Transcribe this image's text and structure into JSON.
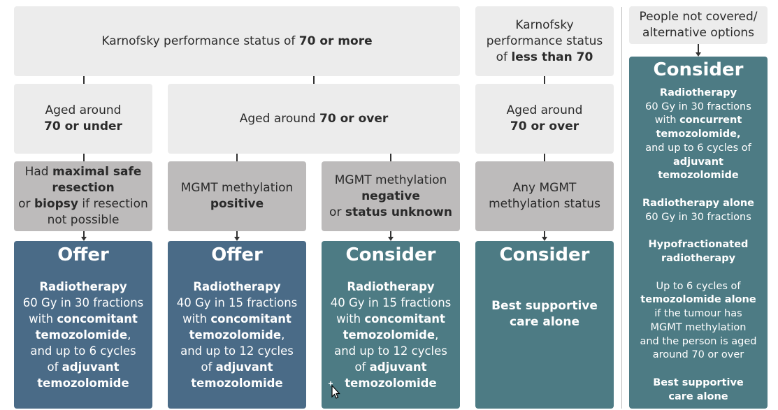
{
  "top": {
    "kps70plus": {
      "pre": "Karnofsky performance status of ",
      "bold": "70 or more"
    },
    "kps_lt70": {
      "l1": "Karnofsky",
      "l2": "performance status",
      "pre": "of ",
      "bold": "less than 70"
    },
    "not_covered": {
      "l1": "People not covered/",
      "l2": "alternative options"
    }
  },
  "age": {
    "c1": {
      "l1": "Aged around",
      "bold": "70 or under"
    },
    "c23": {
      "pre": "Aged around ",
      "bold": "70 or over"
    },
    "c4": {
      "l1": "Aged around",
      "bold": "70 or over"
    }
  },
  "criteria": {
    "c1": {
      "pre1": "Had ",
      "b1": "maximal safe",
      "b2": "resection",
      "pre3": "or ",
      "b3": "biopsy",
      "post3": " if resection",
      "l4": "not possible"
    },
    "c2": {
      "l1": "MGMT methylation",
      "bold": "positive"
    },
    "c3": {
      "l1": "MGMT methylation",
      "bold": "negative",
      "pre": "or ",
      "bold2": "status unknown"
    },
    "c4": {
      "l1": "Any MGMT",
      "l2": "methylation status"
    }
  },
  "recs": {
    "c1": {
      "head": "Offer",
      "b1": "Radiotherapy",
      "l2": "60 Gy in 30 fractions",
      "pre3": "with ",
      "b3": "concomitant",
      "b4": "temozolomide",
      "post4": ",",
      "l5": "and up to 6 cycles",
      "pre6": "of ",
      "b6": "adjuvant",
      "b7": "temozolomide"
    },
    "c2": {
      "head": "Offer",
      "b1": "Radiotherapy",
      "l2": "40 Gy in 15 fractions",
      "pre3": "with ",
      "b3": "concomitant",
      "b4": "temozolomide",
      "post4": ",",
      "l5": "and up to 12 cycles",
      "pre6": "of ",
      "b6": "adjuvant",
      "b7": "temozolomide"
    },
    "c3": {
      "head": "Consider",
      "b1": "Radiotherapy",
      "l2": "40 Gy in 15 fractions",
      "pre3": "with ",
      "b3": "concomitant",
      "b4": "temozolomide",
      "post4": ",",
      "l5": "and up to 12 cycles",
      "pre6": "of ",
      "b6": "adjuvant",
      "b7": "temozolomide"
    },
    "c4": {
      "head": "Consider",
      "b1": "Best supportive",
      "b2": "care alone"
    }
  },
  "alt": {
    "head": "Consider",
    "o1": {
      "b1": "Radiotherapy",
      "l2": "60 Gy in 30 fractions",
      "pre3": "with ",
      "b3": "concurrent",
      "b4": "temozolomide,",
      "l5": "and up to 6 cycles of",
      "b6": "adjuvant",
      "b7": "temozolomide"
    },
    "o2": {
      "b1": "Radiotherapy alone",
      "l2": "60 Gy in 30 fractions"
    },
    "o3": {
      "b1": "Hypofractionated",
      "b2": "radiotherapy"
    },
    "o4": {
      "l1": "Up to 6 cycles of",
      "b2": "temozolomide alone",
      "l3": "if the tumour has",
      "l4": "MGMT methylation",
      "l5": "and the person is aged",
      "l6": "around 70 or over"
    },
    "o5": {
      "b1": "Best supportive",
      "b2": "care alone"
    }
  },
  "colors": {
    "light": "#ececec",
    "mid": "#bdbbbb",
    "offer": "#4a6b87",
    "consider": "#4d7b84"
  }
}
